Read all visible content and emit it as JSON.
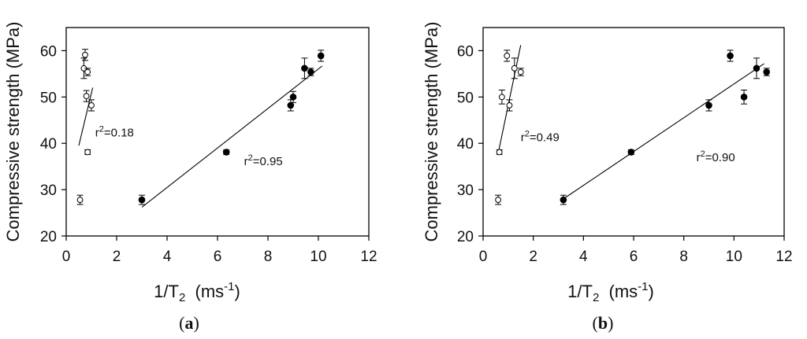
{
  "chart_data": [
    {
      "panel_label": "a",
      "type": "scatter",
      "xlabel": "1/T2 (ms-1)",
      "ylabel": "Compressive strength (MPa)",
      "xlim": [
        0,
        12
      ],
      "ylim": [
        20,
        65
      ],
      "xticks": [
        "0",
        "2",
        "4",
        "6",
        "8",
        "10",
        "12"
      ],
      "yticks": [
        "20",
        "30",
        "40",
        "50",
        "60"
      ],
      "series": [
        {
          "marker": "open-circle",
          "points": [
            {
              "x": 0.55,
              "y": 27.8,
              "err": 1.0
            },
            {
              "x": 0.7,
              "y": 56.2,
              "err": 2.2
            },
            {
              "x": 0.75,
              "y": 59.1,
              "err": 1.2
            },
            {
              "x": 0.8,
              "y": 50.2,
              "err": 1.2
            },
            {
              "x": 0.85,
              "y": 38.1,
              "err": 0.5
            },
            {
              "x": 0.85,
              "y": 55.4,
              "err": 0.8
            },
            {
              "x": 1.0,
              "y": 48.2,
              "err": 1.2
            }
          ],
          "fit": {
            "x": [
              0.5,
              1.05
            ],
            "y": [
              39.5,
              52.0
            ],
            "label": "r2=0.18",
            "label_x": 1.15,
            "label_y": 41.5
          }
        },
        {
          "marker": "filled-circle",
          "points": [
            {
              "x": 3.0,
              "y": 27.8,
              "err": 1.0
            },
            {
              "x": 6.35,
              "y": 38.1,
              "err": 0.5
            },
            {
              "x": 8.9,
              "y": 48.2,
              "err": 1.2
            },
            {
              "x": 9.0,
              "y": 50.0,
              "err": 1.2
            },
            {
              "x": 9.45,
              "y": 56.2,
              "err": 2.2
            },
            {
              "x": 9.7,
              "y": 55.4,
              "err": 0.8
            },
            {
              "x": 10.1,
              "y": 58.9,
              "err": 1.2
            }
          ],
          "fit": {
            "x": [
              3.0,
              10.15
            ],
            "y": [
              26.2,
              56.7
            ],
            "label": "r2=0.95",
            "label_x": 7.05,
            "label_y": 35.3
          }
        }
      ]
    },
    {
      "panel_label": "b",
      "type": "scatter",
      "xlabel": "1/T2 (ms-1)",
      "ylabel": "Compressive strength (MPa)",
      "xlim": [
        0,
        12
      ],
      "ylim": [
        20,
        65
      ],
      "xticks": [
        "0",
        "2",
        "4",
        "6",
        "8",
        "10",
        "12"
      ],
      "yticks": [
        "20",
        "30",
        "40",
        "50",
        "60"
      ],
      "series": [
        {
          "marker": "open-circle",
          "points": [
            {
              "x": 0.6,
              "y": 27.8,
              "err": 1.0
            },
            {
              "x": 0.65,
              "y": 38.1,
              "err": 0.5
            },
            {
              "x": 0.75,
              "y": 50.0,
              "err": 1.5
            },
            {
              "x": 0.95,
              "y": 58.9,
              "err": 1.2
            },
            {
              "x": 1.05,
              "y": 48.2,
              "err": 1.2
            },
            {
              "x": 1.25,
              "y": 56.2,
              "err": 2.2
            },
            {
              "x": 1.5,
              "y": 55.4,
              "err": 0.8
            }
          ],
          "fit": {
            "x": [
              0.6,
              1.5
            ],
            "y": [
              37.8,
              61.2
            ],
            "label": "r2=0.49",
            "label_x": 1.5,
            "label_y": 40.5
          }
        },
        {
          "marker": "filled-circle",
          "points": [
            {
              "x": 3.2,
              "y": 27.8,
              "err": 1.0
            },
            {
              "x": 5.9,
              "y": 38.1,
              "err": 0.5
            },
            {
              "x": 9.0,
              "y": 48.2,
              "err": 1.2
            },
            {
              "x": 9.85,
              "y": 58.9,
              "err": 1.2
            },
            {
              "x": 10.4,
              "y": 50.0,
              "err": 1.5
            },
            {
              "x": 10.9,
              "y": 56.2,
              "err": 2.2
            },
            {
              "x": 11.3,
              "y": 55.4,
              "err": 0.8
            }
          ],
          "fit": {
            "x": [
              3.2,
              11.2
            ],
            "y": [
              28.0,
              57.2
            ],
            "label": "r2=0.90",
            "label_x": 8.5,
            "label_y": 36.1
          }
        }
      ]
    }
  ]
}
